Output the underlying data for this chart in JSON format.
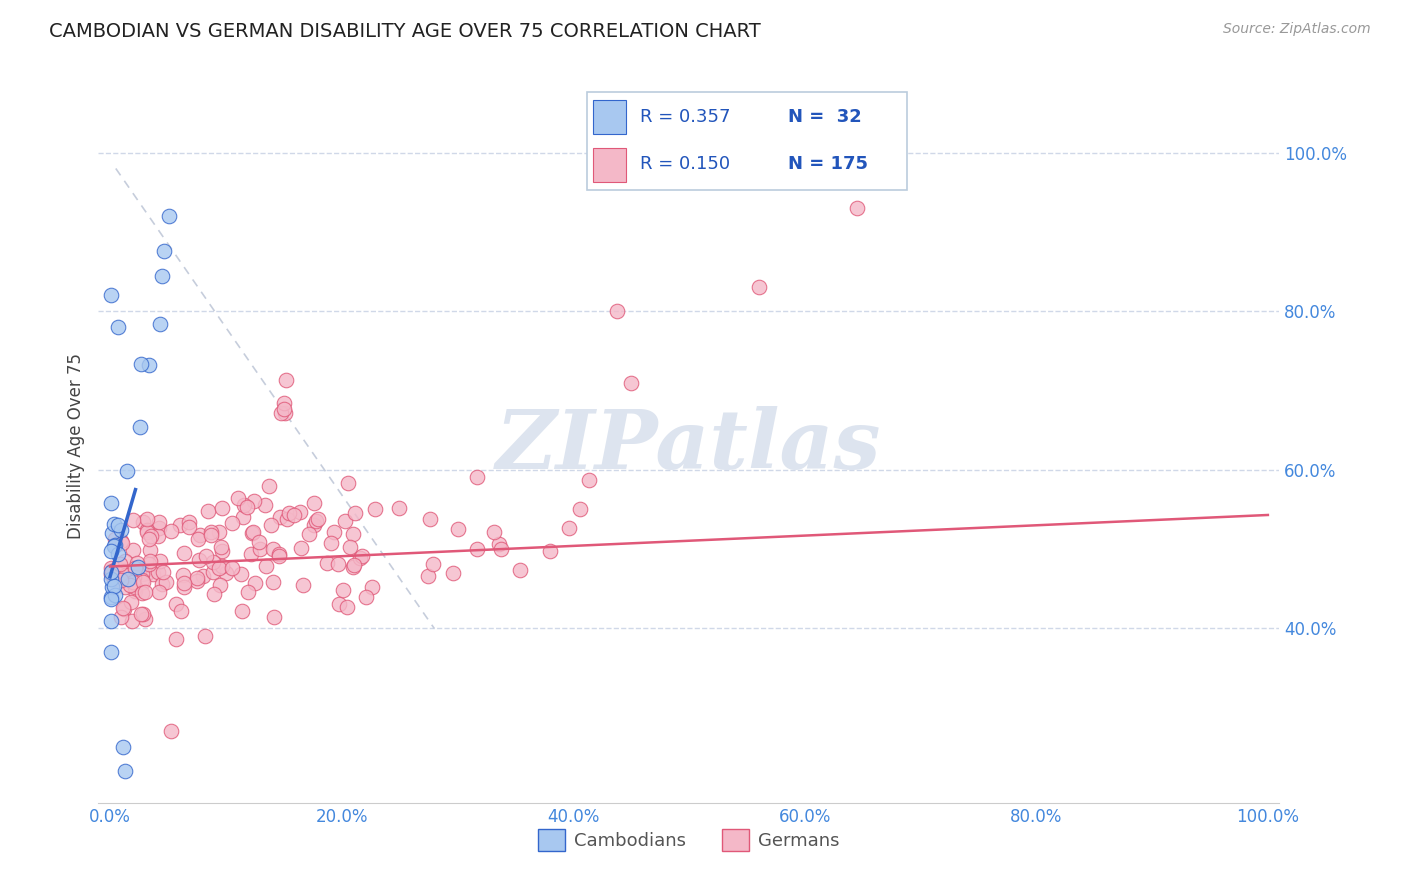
{
  "title": "CAMBODIAN VS GERMAN DISABILITY AGE OVER 75 CORRELATION CHART",
  "source_text": "Source: ZipAtlas.com",
  "ylabel": "Disability Age Over 75",
  "xlim": [
    -0.01,
    1.01
  ],
  "ylim": [
    0.18,
    1.08
  ],
  "xticks": [
    0.0,
    0.2,
    0.4,
    0.6,
    0.8,
    1.0
  ],
  "yticks": [
    0.4,
    0.6,
    0.8,
    1.0
  ],
  "color_cambodian": "#a8c8f0",
  "color_german": "#f4b8c8",
  "color_trendline_cambodian": "#3366cc",
  "color_trendline_german": "#e05878",
  "color_refline": "#c0c8d8",
  "background_color": "#ffffff",
  "grid_color": "#d0d8e8",
  "tick_color": "#4488dd",
  "watermark": "ZIPatlas",
  "watermark_color": "#dde4ef",
  "legend_R1": "R = 0.357",
  "legend_N1": "N =  32",
  "legend_R2": "R = 0.150",
  "legend_N2": "N = 175"
}
